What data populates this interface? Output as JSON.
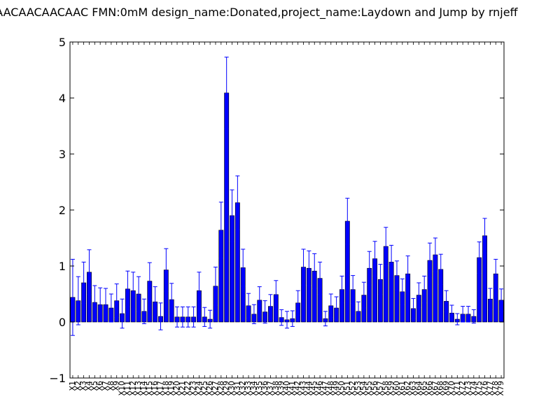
{
  "chart_data": {
    "type": "bar",
    "title": "AACAACAACAACAAC  FMN:0mM  design_name:Donated,project_name:Laydown and Jump by rnjeff",
    "xlabel": "",
    "ylabel": "",
    "ylim": [
      -1,
      5
    ],
    "yticks": [
      "−1",
      "0",
      "1",
      "2",
      "3",
      "4",
      "5"
    ],
    "grid": false,
    "bar_color": "#0000ff",
    "error_color": "#0000ff",
    "categories": [
      "X1",
      "X2",
      "X3",
      "X4",
      "X5",
      "X6",
      "X7",
      "X8",
      "X9",
      "X10",
      "X11",
      "X12",
      "X13",
      "X14",
      "X15",
      "X16",
      "X17",
      "X18",
      "X19",
      "X20",
      "X21",
      "X22",
      "X23",
      "X24",
      "X25",
      "X26",
      "X27",
      "X28",
      "X29",
      "X30",
      "X31",
      "X32",
      "X33",
      "X34",
      "X35",
      "X36",
      "X37",
      "X38",
      "X39",
      "X40",
      "X41",
      "X42",
      "X43",
      "X44",
      "X45",
      "X46",
      "X47",
      "X48",
      "X49",
      "X50",
      "X51",
      "X52",
      "X53",
      "X54",
      "X55",
      "X56",
      "X57",
      "X58",
      "X59",
      "X60",
      "X61",
      "X62",
      "X63",
      "X64",
      "X65",
      "X66",
      "X67",
      "X68",
      "X69",
      "X70",
      "X71",
      "X72",
      "X73",
      "X74",
      "X75",
      "X76",
      "X77",
      "X78",
      "X79"
    ],
    "values": [
      0.44,
      0.38,
      0.7,
      0.89,
      0.35,
      0.31,
      0.31,
      0.25,
      0.38,
      0.15,
      0.59,
      0.56,
      0.5,
      0.19,
      0.73,
      0.36,
      0.1,
      0.93,
      0.4,
      0.09,
      0.09,
      0.09,
      0.09,
      0.56,
      0.09,
      0.05,
      0.64,
      1.64,
      4.09,
      1.9,
      2.13,
      0.97,
      0.29,
      0.14,
      0.39,
      0.18,
      0.28,
      0.49,
      0.08,
      0.04,
      0.06,
      0.34,
      0.98,
      0.96,
      0.91,
      0.78,
      0.06,
      0.29,
      0.25,
      0.58,
      1.8,
      0.58,
      0.19,
      0.48,
      0.96,
      1.13,
      0.76,
      1.35,
      1.07,
      0.83,
      0.54,
      0.86,
      0.24,
      0.48,
      0.58,
      1.1,
      1.2,
      0.94,
      0.37,
      0.16,
      0.05,
      0.14,
      0.14,
      0.1,
      1.15,
      1.54,
      0.41,
      0.86,
      0.39
    ],
    "errors": [
      0.68,
      0.43,
      0.37,
      0.4,
      0.3,
      0.3,
      0.29,
      0.25,
      0.3,
      0.26,
      0.32,
      0.33,
      0.31,
      0.22,
      0.33,
      0.27,
      0.24,
      0.38,
      0.29,
      0.18,
      0.18,
      0.18,
      0.18,
      0.33,
      0.17,
      0.16,
      0.34,
      0.5,
      0.64,
      0.46,
      0.48,
      0.33,
      0.22,
      0.17,
      0.24,
      0.2,
      0.21,
      0.25,
      0.14,
      0.15,
      0.14,
      0.22,
      0.32,
      0.31,
      0.31,
      0.29,
      0.13,
      0.21,
      0.2,
      0.24,
      0.41,
      0.25,
      0.17,
      0.23,
      0.3,
      0.31,
      0.27,
      0.34,
      0.3,
      0.26,
      0.23,
      0.32,
      0.18,
      0.22,
      0.24,
      0.31,
      0.3,
      0.27,
      0.19,
      0.14,
      0.1,
      0.14,
      0.14,
      0.12,
      0.28,
      0.31,
      0.19,
      0.26,
      0.2
    ]
  }
}
